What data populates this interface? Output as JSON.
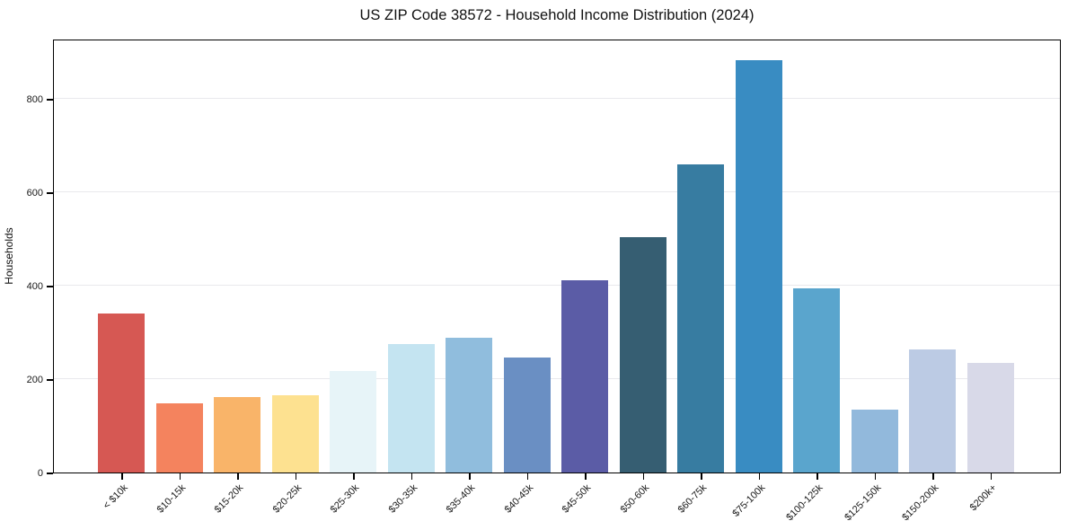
{
  "chart_data": {
    "type": "bar",
    "title": "US ZIP Code 38572 - Household Income Distribution (2024)",
    "xlabel": "",
    "ylabel": "Households",
    "categories": [
      "< $10k",
      "$10-15k",
      "$15-20k",
      "$20-25k",
      "$25-30k",
      "$30-35k",
      "$35-40k",
      "$40-45k",
      "$45-50k",
      "$50-60k",
      "$60-75k",
      "$75-100k",
      "$100-125k",
      "$125-150k",
      "$150-200k",
      "$200k+"
    ],
    "values": [
      340,
      148,
      161,
      165,
      218,
      275,
      288,
      246,
      411,
      503,
      660,
      882,
      394,
      135,
      263,
      234
    ],
    "bar_colors": [
      "#d65853",
      "#f4835e",
      "#f9b469",
      "#fde190",
      "#e7f4f8",
      "#c4e4f1",
      "#90bddd",
      "#6a8fc3",
      "#5b5ca6",
      "#365e72",
      "#377ca1",
      "#398cc2",
      "#5aa5cd",
      "#92b9dc",
      "#bccbe4",
      "#d8d9e8"
    ],
    "yticks": [
      0,
      200,
      400,
      600,
      800
    ],
    "ylim": [
      0,
      929
    ],
    "grid": "horizontal-only",
    "legend": "none",
    "background_color": "#ffffff",
    "spine_color": "#000000",
    "gridline_color": "#e9e9ed"
  }
}
